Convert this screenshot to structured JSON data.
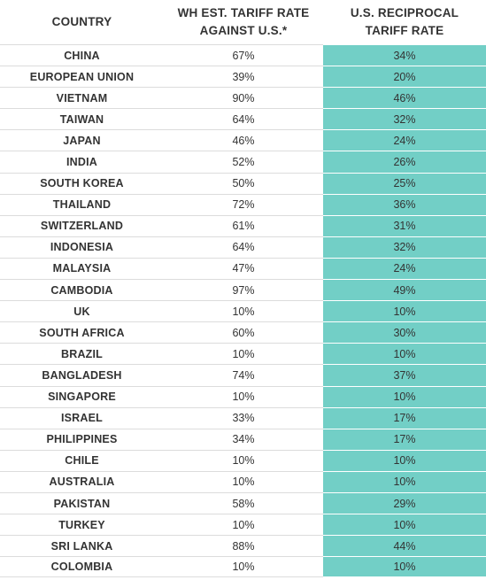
{
  "chart_data": {
    "type": "table",
    "columns": [
      "COUNTRY",
      "WH EST. TARIFF RATE AGAINST U.S.*",
      "U.S. RECIPROCAL TARIFF RATE"
    ],
    "column_lines": [
      [
        "COUNTRY"
      ],
      [
        "WH EST. TARIFF RATE",
        "AGAINST U.S.*"
      ],
      [
        "U.S. RECIPROCAL",
        "TARIFF RATE"
      ]
    ],
    "rows": [
      [
        "CHINA",
        "67%",
        "34%"
      ],
      [
        "EUROPEAN UNION",
        "39%",
        "20%"
      ],
      [
        "VIETNAM",
        "90%",
        "46%"
      ],
      [
        "TAIWAN",
        "64%",
        "32%"
      ],
      [
        "JAPAN",
        "46%",
        "24%"
      ],
      [
        "INDIA",
        "52%",
        "26%"
      ],
      [
        "SOUTH KOREA",
        "50%",
        "25%"
      ],
      [
        "THAILAND",
        "72%",
        "36%"
      ],
      [
        "SWITZERLAND",
        "61%",
        "31%"
      ],
      [
        "INDONESIA",
        "64%",
        "32%"
      ],
      [
        "MALAYSIA",
        "47%",
        "24%"
      ],
      [
        "CAMBODIA",
        "97%",
        "49%"
      ],
      [
        "UK",
        "10%",
        "10%"
      ],
      [
        "SOUTH AFRICA",
        "60%",
        "30%"
      ],
      [
        "BRAZIL",
        "10%",
        "10%"
      ],
      [
        "BANGLADESH",
        "74%",
        "37%"
      ],
      [
        "SINGAPORE",
        "10%",
        "10%"
      ],
      [
        "ISRAEL",
        "33%",
        "17%"
      ],
      [
        "PHILIPPINES",
        "34%",
        "17%"
      ],
      [
        "CHILE",
        "10%",
        "10%"
      ],
      [
        "AUSTRALIA",
        "10%",
        "10%"
      ],
      [
        "PAKISTAN",
        "58%",
        "29%"
      ],
      [
        "TURKEY",
        "10%",
        "10%"
      ],
      [
        "SRI LANKA",
        "88%",
        "44%"
      ],
      [
        "COLOMBIA",
        "10%",
        "10%"
      ]
    ],
    "colors": {
      "highlight_column": "#72cfc6",
      "text": "#333333",
      "grid": "#dcdcdc"
    }
  }
}
